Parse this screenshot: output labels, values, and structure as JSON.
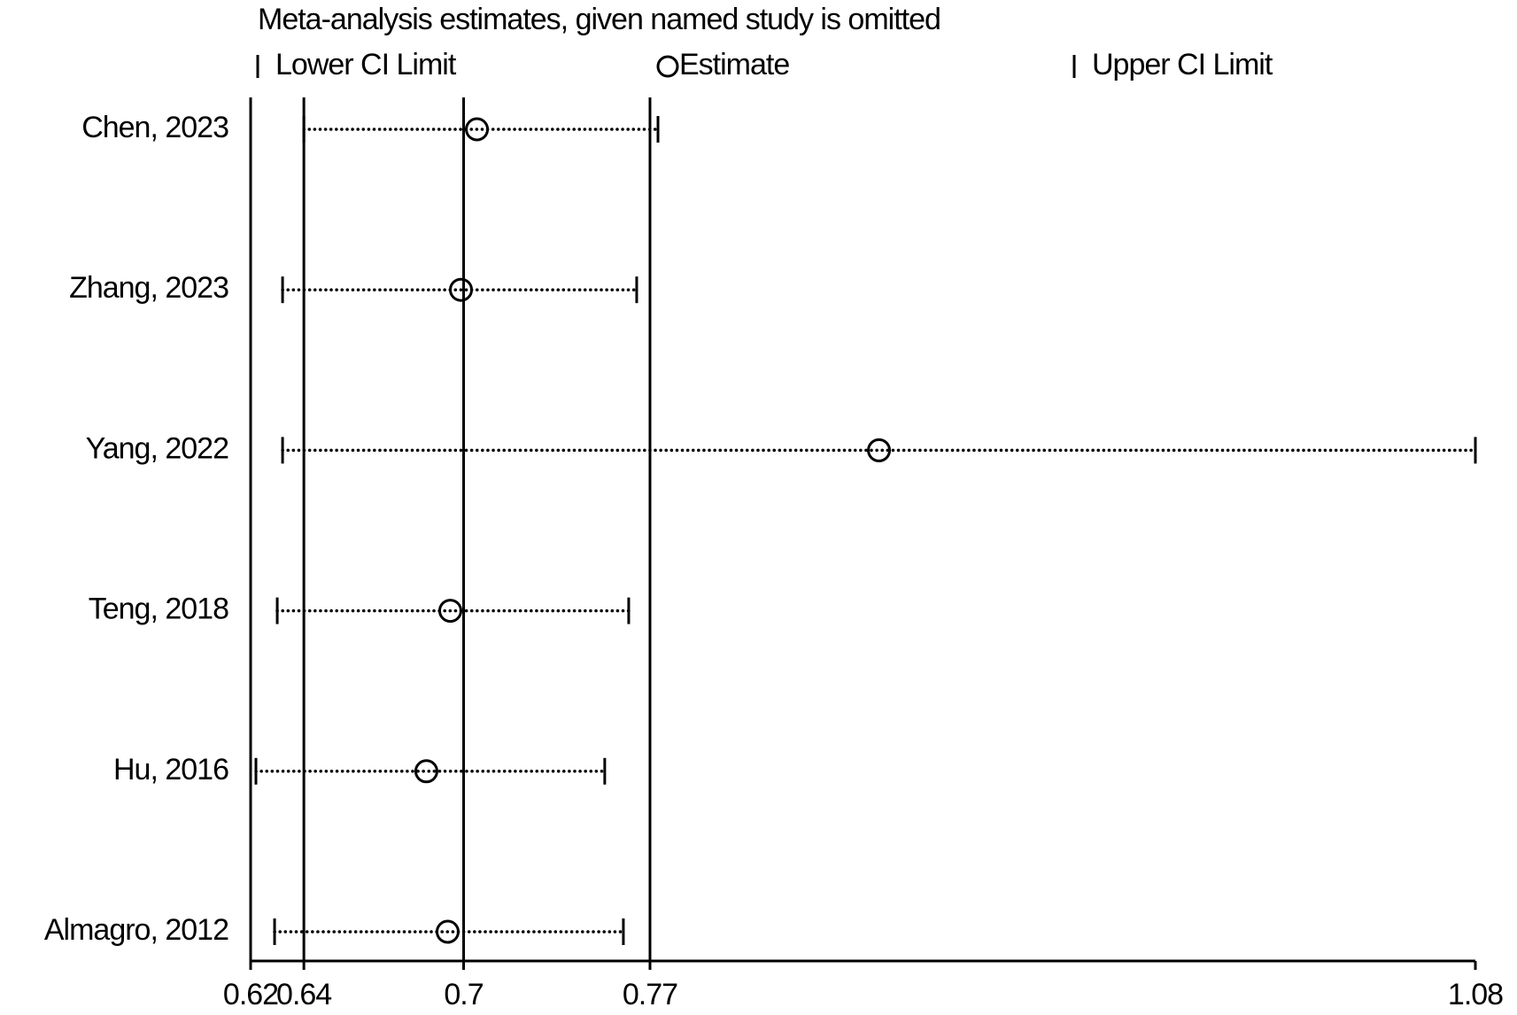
{
  "chart_data": {
    "type": "forest",
    "title": "Meta-analysis estimates, given named study is omitted",
    "categories": [
      "Chen, 2023",
      "Zhang, 2023",
      "Yang, 2022",
      "Teng, 2018",
      "Hu, 2016",
      "Almagro, 2012"
    ],
    "series": [
      {
        "name": "Lower CI Limit",
        "values": [
          0.64,
          0.632,
          0.632,
          0.63,
          0.622,
          0.629
        ]
      },
      {
        "name": "Estimate",
        "values": [
          0.705,
          0.699,
          0.856,
          0.695,
          0.686,
          0.694
        ]
      },
      {
        "name": "Upper CI Limit",
        "values": [
          0.773,
          0.765,
          1.08,
          0.762,
          0.753,
          0.76
        ]
      }
    ],
    "color": "#000000",
    "xlim": [
      0.62,
      1.08
    ],
    "xticks": [
      0.62,
      0.64,
      0.7,
      0.77,
      1.08
    ]
  }
}
